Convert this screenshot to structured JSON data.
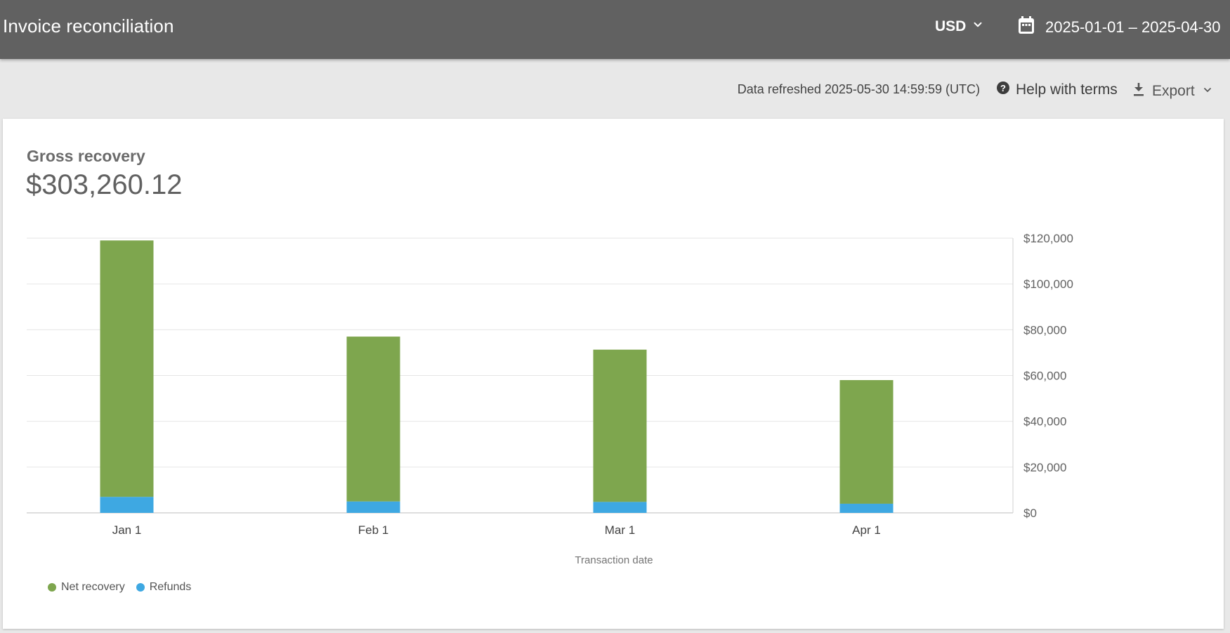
{
  "header": {
    "title": "Invoice reconciliation",
    "currency": "USD",
    "date_range": "2025-01-01 – 2025-04-30"
  },
  "subbar": {
    "refreshed": "Data refreshed 2025-05-30 14:59:59 (UTC)",
    "help_label": "Help with terms",
    "export_label": "Export"
  },
  "card": {
    "metric_label": "Gross recovery",
    "metric_value": "$303,260.12"
  },
  "colors": {
    "net_recovery": "#7ea64e",
    "refunds": "#3ea8e2"
  },
  "chart_data": {
    "type": "bar",
    "stacked": true,
    "categories": [
      "Jan 1",
      "Feb 1",
      "Mar 1",
      "Apr 1"
    ],
    "series": [
      {
        "name": "Refunds",
        "values": [
          7000,
          5000,
          4800,
          4000
        ]
      },
      {
        "name": "Net recovery",
        "values": [
          112000,
          72000,
          66500,
          54000
        ]
      }
    ],
    "xlabel": "Transaction date",
    "ylabel": "",
    "ylim": [
      0,
      120000
    ],
    "yticks": [
      "$0",
      "$20,000",
      "$40,000",
      "$60,000",
      "$80,000",
      "$100,000",
      "$120,000"
    ],
    "grid": true,
    "legend_position": "bottom-left"
  }
}
